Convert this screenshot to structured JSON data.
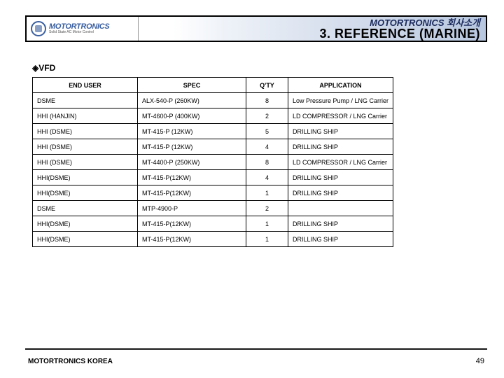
{
  "header": {
    "logo_main": "MOTORTRONICS",
    "logo_sub": "Solid State AC Motor Control",
    "title_top": "MOTORTRONICS 회사소개",
    "title_main": "3. REFERENCE (MARINE)"
  },
  "section_label": "◈VFD",
  "table": {
    "columns": [
      "END USER",
      "SPEC",
      "Q'TY",
      "APPLICATION"
    ],
    "rows": [
      [
        "DSME",
        "ALX-540-P (260KW)",
        "8",
        "Low Pressure Pump / LNG Carrier"
      ],
      [
        "HHI (HANJIN)",
        "MT-4600-P (400KW)",
        "2",
        "LD COMPRESSOR / LNG Carrier"
      ],
      [
        "HHI (DSME)",
        "MT-415-P (12KW)",
        "5",
        "DRILLING SHIP"
      ],
      [
        "HHI (DSME)",
        "MT-415-P (12KW)",
        "4",
        "DRILLING SHIP"
      ],
      [
        "HHI (DSME)",
        "MT-4400-P (250KW)",
        "8",
        "LD COMPRESSOR / LNG Carrier"
      ],
      [
        "HHI(DSME)",
        "MT-415-P(12KW)",
        "4",
        "DRILLING SHIP"
      ],
      [
        "HHI(DSME)",
        "MT-415-P(12KW)",
        "1",
        "DRILLING SHIP"
      ],
      [
        "DSME",
        "MTP-4900-P",
        "2",
        ""
      ],
      [
        "HHI(DSME)",
        "MT-415-P(12KW)",
        "1",
        "DRILLING SHIP"
      ],
      [
        "HHI(DSME)",
        "MT-415-P(12KW)",
        "1",
        "DRILLING SHIP"
      ]
    ]
  },
  "footer": {
    "left": "MOTORTRONICS KOREA",
    "page": "49"
  }
}
